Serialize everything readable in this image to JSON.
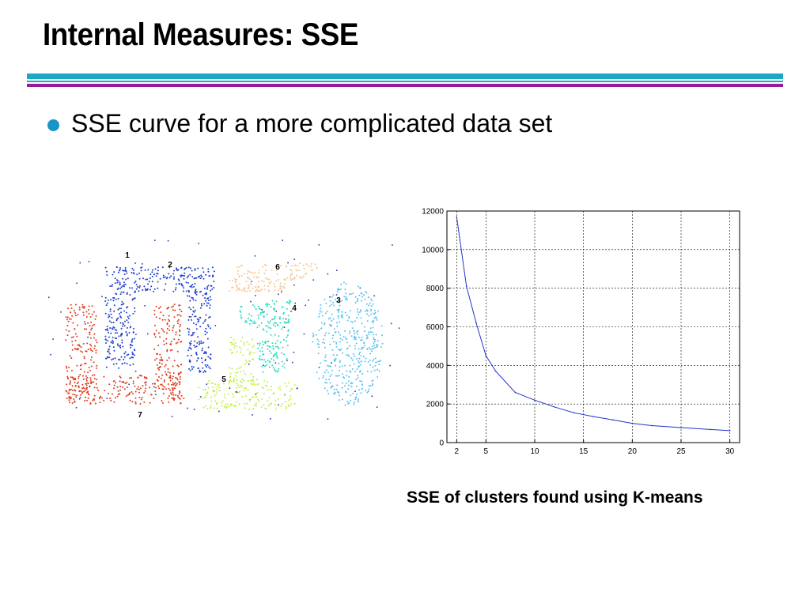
{
  "slide": {
    "title": "Internal Measures: SSE",
    "bullet": "SSE curve for a more complicated data set",
    "caption": "SSE of clusters found using K-means"
  },
  "colors": {
    "rule_teal": "#1aa8c2",
    "rule_purple": "#9a1a96",
    "bullet": "#1a93c8",
    "sse_line": "#2233cc",
    "cluster_1": "#1f3fd0",
    "cluster_2": "#1f3fd0",
    "cluster_3": "#5cc3ef",
    "cluster_4": "#2bdcc0",
    "cluster_5": "#bff040",
    "cluster_6": "#f6c690",
    "cluster_7": "#e03a1a",
    "noise": "#2a3aa8"
  },
  "scatter_labels": [
    "1",
    "2",
    "3",
    "4",
    "5",
    "6",
    "7"
  ],
  "chart_data": [
    {
      "type": "scatter",
      "series": [
        {
          "name": "1"
        },
        {
          "name": "2"
        },
        {
          "name": "3"
        },
        {
          "name": "4"
        },
        {
          "name": "5"
        },
        {
          "name": "6"
        },
        {
          "name": "7"
        }
      ],
      "grid": false
    },
    {
      "type": "line",
      "x": [
        2,
        3,
        4,
        5,
        6,
        8,
        10,
        12,
        14,
        16,
        18,
        20,
        22,
        25,
        28,
        30
      ],
      "values": [
        11700,
        8100,
        6200,
        4500,
        3700,
        2600,
        2200,
        1850,
        1550,
        1350,
        1180,
        1000,
        880,
        780,
        680,
        620
      ],
      "xticks": [
        2,
        5,
        10,
        15,
        20,
        25,
        30
      ],
      "yticks": [
        0,
        2000,
        4000,
        6000,
        8000,
        10000,
        12000
      ],
      "xlim": [
        1,
        31
      ],
      "ylim": [
        0,
        12000
      ],
      "grid": true,
      "title": "",
      "xlabel": "",
      "ylabel": ""
    }
  ]
}
